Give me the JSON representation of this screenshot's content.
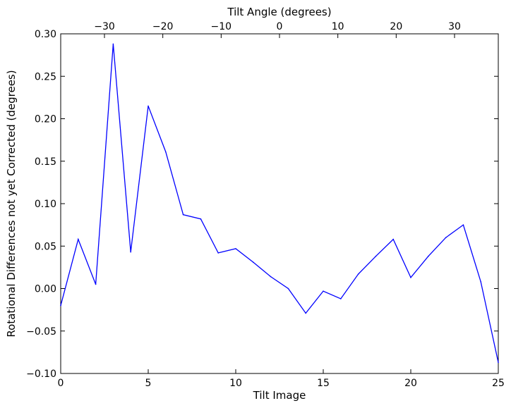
{
  "chart_data": {
    "type": "line",
    "xlabel": "Tilt Image",
    "ylabel": "Rotational Differences not yet Corrected (degrees)",
    "x2label": "Tilt Angle (degrees)",
    "xlim": [
      0,
      25
    ],
    "ylim": [
      -0.1,
      0.3
    ],
    "x2lim": [
      -37.5,
      37.5
    ],
    "xticks": [
      0,
      5,
      10,
      15,
      20,
      25
    ],
    "xtick_labels": [
      "0",
      "5",
      "10",
      "15",
      "20",
      "25"
    ],
    "yticks": [
      -0.1,
      -0.05,
      0.0,
      0.05,
      0.1,
      0.15,
      0.2,
      0.25,
      0.3
    ],
    "ytick_labels": [
      "−0.10",
      "−0.05",
      "0.00",
      "0.05",
      "0.10",
      "0.15",
      "0.20",
      "0.25",
      "0.30"
    ],
    "x2ticks": [
      -30,
      -20,
      -10,
      0,
      10,
      20,
      30
    ],
    "x2tick_labels": [
      "−30",
      "−20",
      "−10",
      "0",
      "10",
      "20",
      "30"
    ],
    "grid": false,
    "series": [
      {
        "color": "#0000ff",
        "x": [
          0,
          1,
          2,
          3,
          4,
          5,
          6,
          7,
          8,
          9,
          10,
          11,
          12,
          13,
          14,
          15,
          16,
          17,
          18,
          19,
          20,
          21,
          22,
          23,
          24,
          25
        ],
        "y": [
          -0.02,
          0.058,
          0.005,
          0.288,
          0.043,
          0.215,
          0.161,
          0.087,
          0.082,
          0.042,
          0.047,
          0.031,
          0.014,
          0.0,
          -0.029,
          -0.003,
          -0.012,
          0.017,
          0.038,
          0.058,
          0.013,
          0.038,
          0.06,
          0.075,
          0.008,
          -0.087
        ]
      }
    ]
  }
}
